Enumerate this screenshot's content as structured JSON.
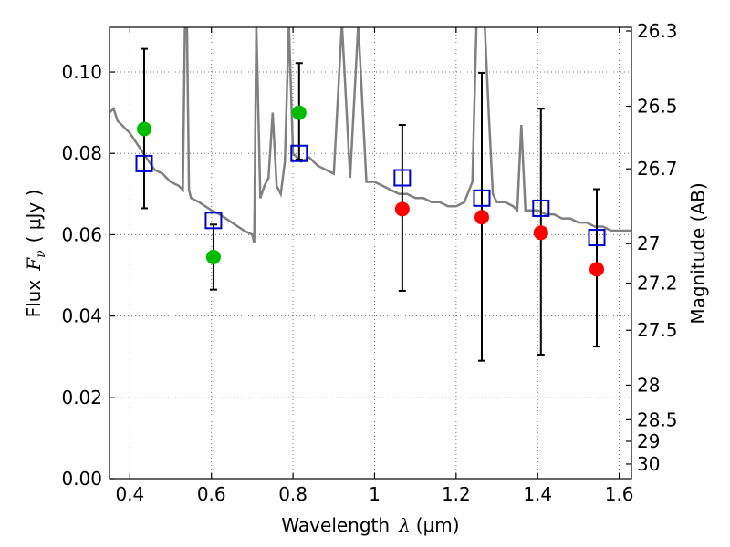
{
  "chart_data": {
    "type": "scatter",
    "xlabel_prefix": "Wavelength",
    "xlabel_symbol": "λ",
    "xlabel_unit": "(μm)",
    "ylabel_prefix": "Flux",
    "ylabel_symbol": "F",
    "ylabel_subscript": "ν",
    "ylabel_unit": "( μJy )",
    "y2label": "Magnitude (AB)",
    "xlim": [
      0.35,
      1.63
    ],
    "ylim": [
      0.0,
      0.111
    ],
    "grid": true,
    "x_ticks": [
      0.4,
      0.6,
      0.8,
      1.0,
      1.2,
      1.4,
      1.6
    ],
    "x_tick_labels": [
      "0.4",
      "0.6",
      "0.8",
      "1",
      "1.2",
      "1.4",
      "1.6"
    ],
    "y_ticks": [
      0.0,
      0.02,
      0.04,
      0.06,
      0.08,
      0.1
    ],
    "y_tick_labels": [
      "0.00",
      "0.02",
      "0.04",
      "0.06",
      "0.08",
      "0.10"
    ],
    "y2_ticks": [
      {
        "label": "26.3",
        "flux": 0.1101
      },
      {
        "label": "26.5",
        "flux": 0.0916
      },
      {
        "label": "26.7",
        "flux": 0.0762
      },
      {
        "label": "27",
        "flux": 0.0578
      },
      {
        "label": "27.2",
        "flux": 0.0481
      },
      {
        "label": "27.5",
        "flux": 0.0365
      },
      {
        "label": "28",
        "flux": 0.023
      },
      {
        "label": "28.5",
        "flux": 0.0145
      },
      {
        "label": "29",
        "flux": 0.0092
      },
      {
        "label": "30",
        "flux": 0.0036
      }
    ],
    "series": [
      {
        "style": "model-sed",
        "color": "#808080",
        "x": [
          0.35,
          0.36,
          0.37,
          0.38,
          0.4,
          0.42,
          0.44,
          0.46,
          0.48,
          0.5,
          0.52,
          0.53,
          0.535,
          0.54,
          0.545,
          0.55,
          0.57,
          0.6,
          0.62,
          0.65,
          0.68,
          0.7,
          0.705,
          0.71,
          0.72,
          0.73,
          0.74,
          0.75,
          0.76,
          0.77,
          0.78,
          0.79,
          0.8,
          0.82,
          0.84,
          0.86,
          0.88,
          0.9,
          0.92,
          0.94,
          0.96,
          0.98,
          1.0,
          1.02,
          1.04,
          1.06,
          1.08,
          1.1,
          1.12,
          1.14,
          1.16,
          1.18,
          1.2,
          1.22,
          1.24,
          1.25,
          1.26,
          1.27,
          1.28,
          1.29,
          1.3,
          1.32,
          1.34,
          1.35,
          1.36,
          1.37,
          1.38,
          1.4,
          1.42,
          1.44,
          1.46,
          1.48,
          1.5,
          1.52,
          1.54,
          1.56,
          1.58,
          1.6,
          1.62,
          1.63
        ],
        "y": [
          0.09,
          0.091,
          0.088,
          0.087,
          0.085,
          0.082,
          0.079,
          0.076,
          0.075,
          0.073,
          0.072,
          0.071,
          0.112,
          0.112,
          0.071,
          0.069,
          0.068,
          0.066,
          0.065,
          0.063,
          0.061,
          0.06,
          0.058,
          0.112,
          0.069,
          0.072,
          0.074,
          0.09,
          0.072,
          0.07,
          0.078,
          0.112,
          0.08,
          0.078,
          0.079,
          0.077,
          0.076,
          0.075,
          0.112,
          0.074,
          0.112,
          0.073,
          0.073,
          0.072,
          0.071,
          0.07,
          0.07,
          0.069,
          0.069,
          0.068,
          0.068,
          0.067,
          0.067,
          0.068,
          0.073,
          0.112,
          0.112,
          0.112,
          0.09,
          0.07,
          0.068,
          0.068,
          0.067,
          0.066,
          0.087,
          0.066,
          0.066,
          0.066,
          0.065,
          0.065,
          0.064,
          0.064,
          0.063,
          0.063,
          0.062,
          0.062,
          0.061,
          0.061,
          0.061,
          0.061
        ]
      },
      {
        "style": "observed-green",
        "color": "#00bb00",
        "x": [
          0.435,
          0.605,
          0.815
        ],
        "y": [
          0.086,
          0.0545,
          0.09
        ]
      },
      {
        "style": "observed-red",
        "color": "#ff0000",
        "x": [
          1.068,
          1.263,
          1.408,
          1.545
        ],
        "y": [
          0.0663,
          0.0643,
          0.0605,
          0.0515
        ]
      },
      {
        "style": "model-photometry",
        "color": "#0000cc",
        "x": [
          0.435,
          0.605,
          0.815,
          1.068,
          1.263,
          1.408,
          1.545
        ],
        "y": [
          0.0775,
          0.0635,
          0.08,
          0.074,
          0.069,
          0.0665,
          0.0593
        ]
      },
      {
        "style": "errorbars",
        "color": "#000000",
        "x": [
          0.435,
          0.605,
          0.815,
          1.068,
          1.263,
          1.408,
          1.545
        ],
        "low": [
          0.0665,
          0.0465,
          0.0785,
          0.0462,
          0.029,
          0.0305,
          0.0325
        ],
        "high": [
          0.1057,
          0.0625,
          0.1022,
          0.087,
          0.0998,
          0.091,
          0.0712
        ]
      }
    ]
  }
}
